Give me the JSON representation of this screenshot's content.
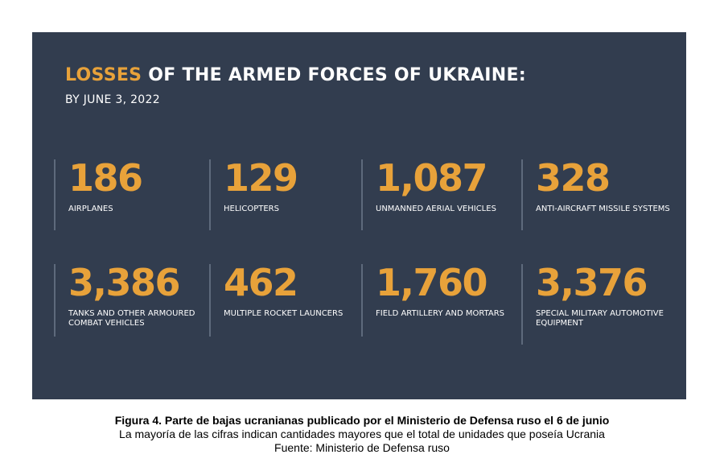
{
  "infographic": {
    "title_highlight": "LOSSES",
    "title_rest": " OF THE ARMED FORCES OF UKRAINE:",
    "subtitle": "BY JUNE 3, 2022",
    "stats": [
      {
        "value": "186",
        "label": "AIRPLANES"
      },
      {
        "value": "129",
        "label": "HELICOPTERS"
      },
      {
        "value": "1,087",
        "label": "UNMANNED AERIAL VEHICLES"
      },
      {
        "value": "328",
        "label": "ANTI-AIRCRAFT MISSILE SYSTEMS"
      },
      {
        "value": "3,386",
        "label": "TANKS AND OTHER ARMOURED\nCOMBAT VEHICLES"
      },
      {
        "value": "462",
        "label": "MULTIPLE ROCKET LAUNCERS"
      },
      {
        "value": "1,760",
        "label": "FIELD ARTILLERY AND MORTARS"
      },
      {
        "value": "3,376",
        "label": "SPECIAL MILITARY AUTOMOTIVE\nEQUIPMENT"
      }
    ],
    "colors": {
      "background": "#323d4f",
      "accent": "#e8a23a",
      "text": "#ffffff"
    }
  },
  "caption": {
    "line1": "Figura 4. Parte de bajas ucranianas publicado por el Ministerio de Defensa ruso el 6 de junio",
    "line2": "La mayoría de las cifras indican cantidades mayores que el total de unidades que poseía Ucrania",
    "line3": "Fuente: Ministerio de Defensa ruso"
  }
}
